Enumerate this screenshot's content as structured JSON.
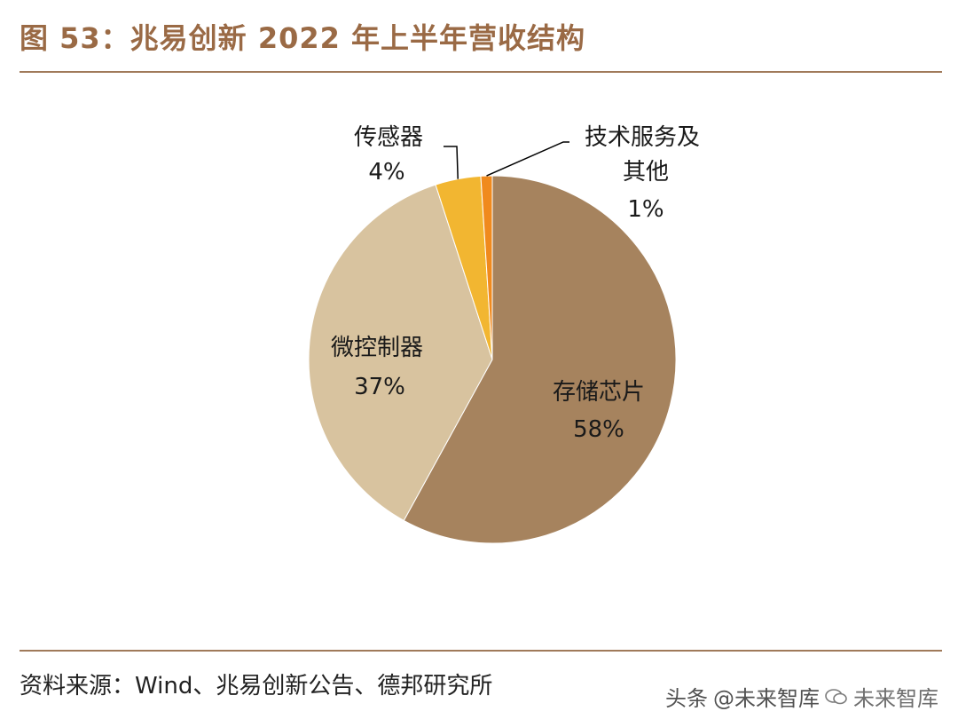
{
  "title": "图 53：兆易创新 2022 年上半年营收结构",
  "source": "资料来源：Wind、兆易创新公告、德邦研究所",
  "watermark": {
    "platform": "头条",
    "handle": "@未来智库",
    "wechat_name": "未来智库",
    "icon": "wechat-icon"
  },
  "chart_data": {
    "type": "pie",
    "title": "图 53：兆易创新 2022 年上半年营收结构",
    "slices": [
      {
        "label": "存储芯片",
        "value": 58,
        "pct_label": "58%",
        "color": "#a6835e"
      },
      {
        "label": "微控制器",
        "value": 37,
        "pct_label": "37%",
        "color": "#d8c39f"
      },
      {
        "label": "传感器",
        "value": 4,
        "pct_label": "4%",
        "color": "#f2b631"
      },
      {
        "label": "技术服务及其他",
        "value": 1,
        "pct_label": "1%",
        "color": "#f08a1d"
      }
    ],
    "label_lines": [
      "技术服务及",
      "其他"
    ],
    "legend": "none"
  }
}
